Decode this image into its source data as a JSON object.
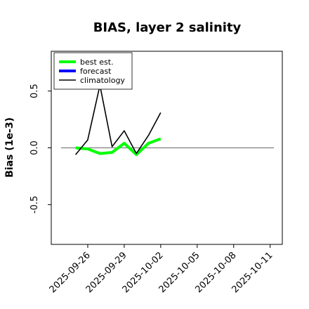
{
  "chart_data": {
    "type": "line",
    "title": "BIAS, layer 2 salinity",
    "xlabel": "",
    "ylabel": "Bias (1e-3)",
    "xlim": [
      "2025-09-23",
      "2025-10-12"
    ],
    "ylim": [
      -0.85,
      0.85
    ],
    "yticks": [
      -0.5,
      0.0,
      0.5
    ],
    "ytick_labels": [
      "-0.5",
      "0.0",
      "0.5"
    ],
    "xticks": [
      "2025-09-26",
      "2025-09-29",
      "2025-10-02",
      "2025-10-05",
      "2025-10-08",
      "2025-10-11"
    ],
    "xtick_colors": [
      "#000000",
      "#000000",
      "#228B22",
      "#000000",
      "#000000",
      "#000000"
    ],
    "zero_line": true,
    "grid": false,
    "legend_position": "top-left",
    "series": [
      {
        "name": "best est.",
        "color": "#00ff00",
        "x": [
          "2025-09-25",
          "2025-09-26",
          "2025-09-27",
          "2025-09-28",
          "2025-09-29",
          "2025-09-30",
          "2025-10-01",
          "2025-10-02"
        ],
        "values": [
          0.0,
          -0.01,
          -0.05,
          -0.04,
          0.04,
          -0.06,
          0.04,
          0.08
        ]
      },
      {
        "name": "forecast",
        "color": "#0000ff",
        "x": [],
        "values": []
      },
      {
        "name": "climatology",
        "color": "#000000",
        "x": [
          "2025-09-25",
          "2025-09-26",
          "2025-09-27",
          "2025-09-28",
          "2025-09-29",
          "2025-09-30",
          "2025-10-01",
          "2025-10-02"
        ],
        "values": [
          -0.06,
          0.07,
          0.55,
          0.01,
          0.15,
          -0.05,
          0.11,
          0.31
        ]
      }
    ]
  }
}
